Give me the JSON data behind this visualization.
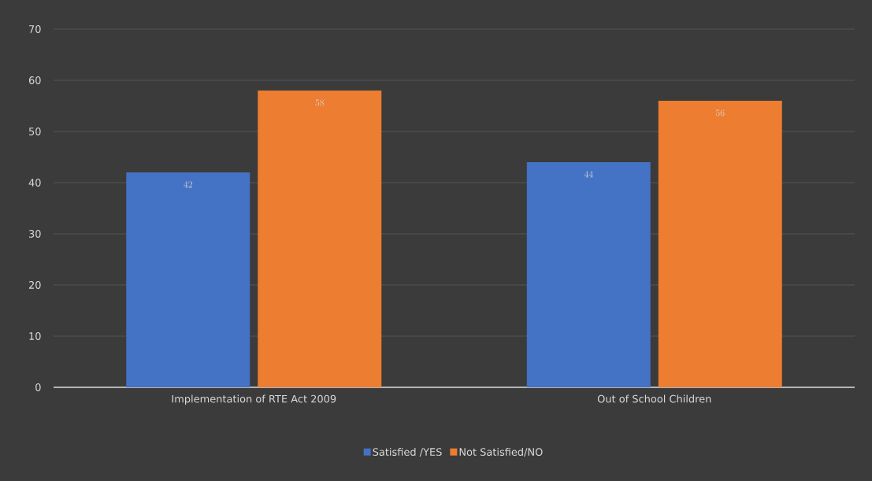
{
  "chart_data": {
    "type": "bar",
    "categories": [
      "Implementation of RTE Act 2009",
      "Out of School Children"
    ],
    "series": [
      {
        "name": "Satisfied /YES",
        "color": "#4472c4",
        "values": [
          42,
          44
        ]
      },
      {
        "name": "Not Satisfied/NO",
        "color": "#ed7d31",
        "values": [
          58,
          56
        ]
      }
    ],
    "ylim": [
      0,
      70
    ],
    "yticks": [
      0,
      10,
      20,
      30,
      40,
      50,
      60,
      70
    ],
    "grid": "y",
    "legend": "bottom",
    "data_labels": true
  }
}
